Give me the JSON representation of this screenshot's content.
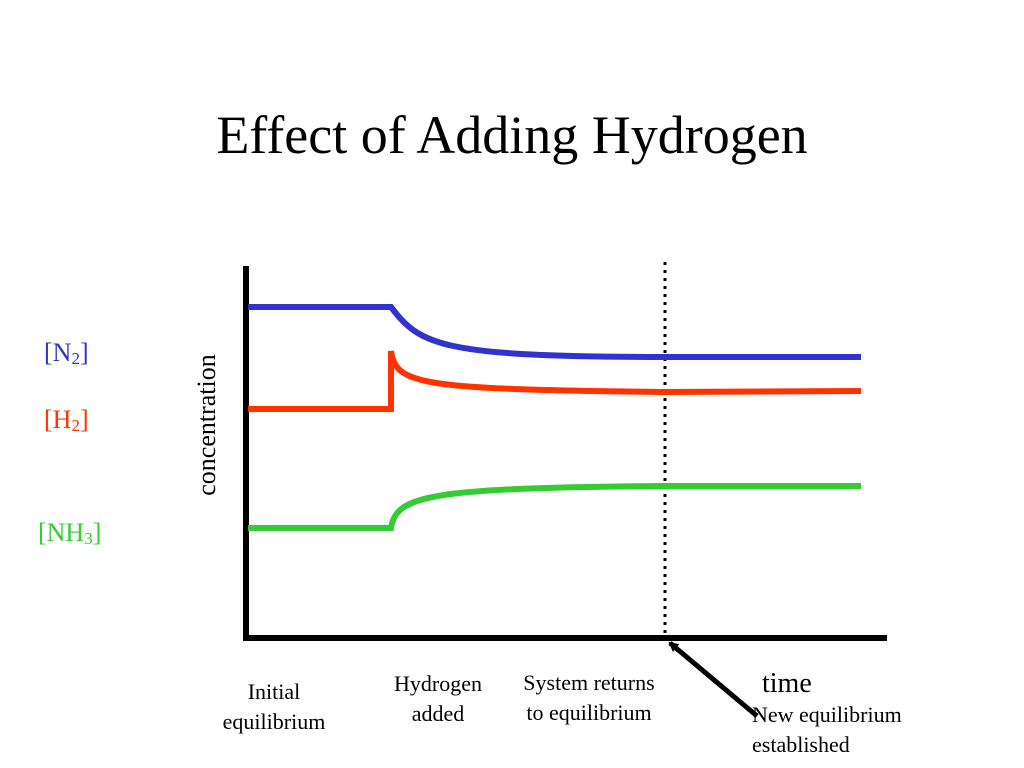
{
  "title": "Effect of Adding Hydrogen",
  "chart_data": {
    "type": "line",
    "ylabel": "concentration",
    "xlabel": "time",
    "series": [
      {
        "name": "[N2]",
        "label_main": "[N",
        "label_sub": "2",
        "label_end": "]",
        "color": "#3333cc"
      },
      {
        "name": "[H2]",
        "label_main": "[H",
        "label_sub": "2",
        "label_end": "]",
        "color": "#ff3300"
      },
      {
        "name": "[NH3]",
        "label_main": "[NH",
        "label_sub": "3",
        "label_end": "]",
        "color": "#33cc33"
      }
    ]
  },
  "annotations": {
    "initial": [
      "Initial",
      "equilibrium"
    ],
    "hydrogen_added": [
      "Hydrogen",
      "added"
    ],
    "system_returns": [
      "System returns",
      "to equilibrium"
    ],
    "new_equilibrium": [
      "New equilibrium",
      "established"
    ]
  }
}
